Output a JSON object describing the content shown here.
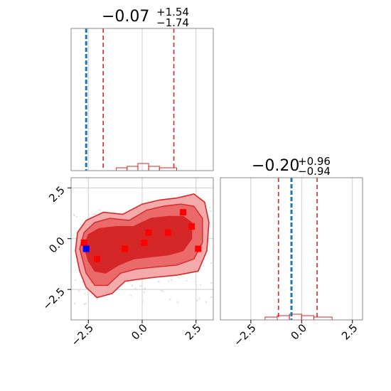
{
  "chart_data": [
    {
      "type": "histogram",
      "panel": "marginal-x",
      "title": {
        "main": "−0.07",
        "sup": "+1.54",
        "sub": "−1.74"
      },
      "median": -0.07,
      "quantile_lines": [
        -1.81,
        1.47
      ],
      "xlim": [
        -3.3,
        3.3
      ],
      "bins": [
        {
          "x0": -1.2,
          "x1": -0.7,
          "count": 0.02
        },
        {
          "x0": -0.7,
          "x1": -0.2,
          "count": 0.03
        },
        {
          "x0": -0.2,
          "x1": 0.3,
          "count": 0.05
        },
        {
          "x0": 0.3,
          "x1": 0.8,
          "count": 0.03
        },
        {
          "x0": 0.8,
          "x1": 1.6,
          "count": 0.02
        }
      ],
      "truth_line": -2.6,
      "colors": {
        "hist": "#d62728",
        "truth": "#1f77b4"
      }
    },
    {
      "type": "contour",
      "panel": "joint",
      "xlim": [
        -3.3,
        3.3
      ],
      "ylim": [
        -4.0,
        3.0
      ],
      "xticks": [
        "−2.5",
        "0.0",
        "2.5"
      ],
      "yticks": [
        "2.5",
        "0.0",
        "−2.5"
      ],
      "points_red": [
        [
          -2.7,
          -0.2
        ],
        [
          -2.1,
          -1.0
        ],
        [
          -0.8,
          -0.5
        ],
        [
          0.1,
          -0.2
        ],
        [
          0.3,
          0.3
        ],
        [
          1.2,
          0.3
        ],
        [
          1.9,
          1.3
        ],
        [
          2.3,
          0.6
        ],
        [
          2.6,
          -0.5
        ]
      ],
      "point_blue": [
        -2.6,
        -0.5
      ],
      "colors": {
        "fill_outer": "#f4aaaa",
        "fill_mid": "#ea6a6a",
        "fill_inner": "#d62728",
        "line": "#d62728",
        "truth": "#0000ff"
      }
    },
    {
      "type": "histogram",
      "panel": "marginal-y",
      "title": {
        "main": "−0.20",
        "sup": "+0.96",
        "sub": "−0.94"
      },
      "median": -0.2,
      "quantile_lines": [
        -1.14,
        0.76
      ],
      "xlim": [
        -4.0,
        3.0
      ],
      "xticks": [
        "−2.5",
        "0.0",
        "2.5"
      ],
      "bins": [
        {
          "x0": -1.8,
          "x1": -1.2,
          "count": 0.02
        },
        {
          "x0": -1.2,
          "x1": -0.6,
          "count": 0.03
        },
        {
          "x0": -0.6,
          "x1": 0.0,
          "count": 0.04
        },
        {
          "x0": 0.0,
          "x1": 0.6,
          "count": 0.03
        },
        {
          "x0": 0.6,
          "x1": 1.5,
          "count": 0.02
        }
      ],
      "truth_line": -0.5,
      "colors": {
        "hist": "#d62728",
        "truth": "#1f77b4"
      }
    }
  ]
}
